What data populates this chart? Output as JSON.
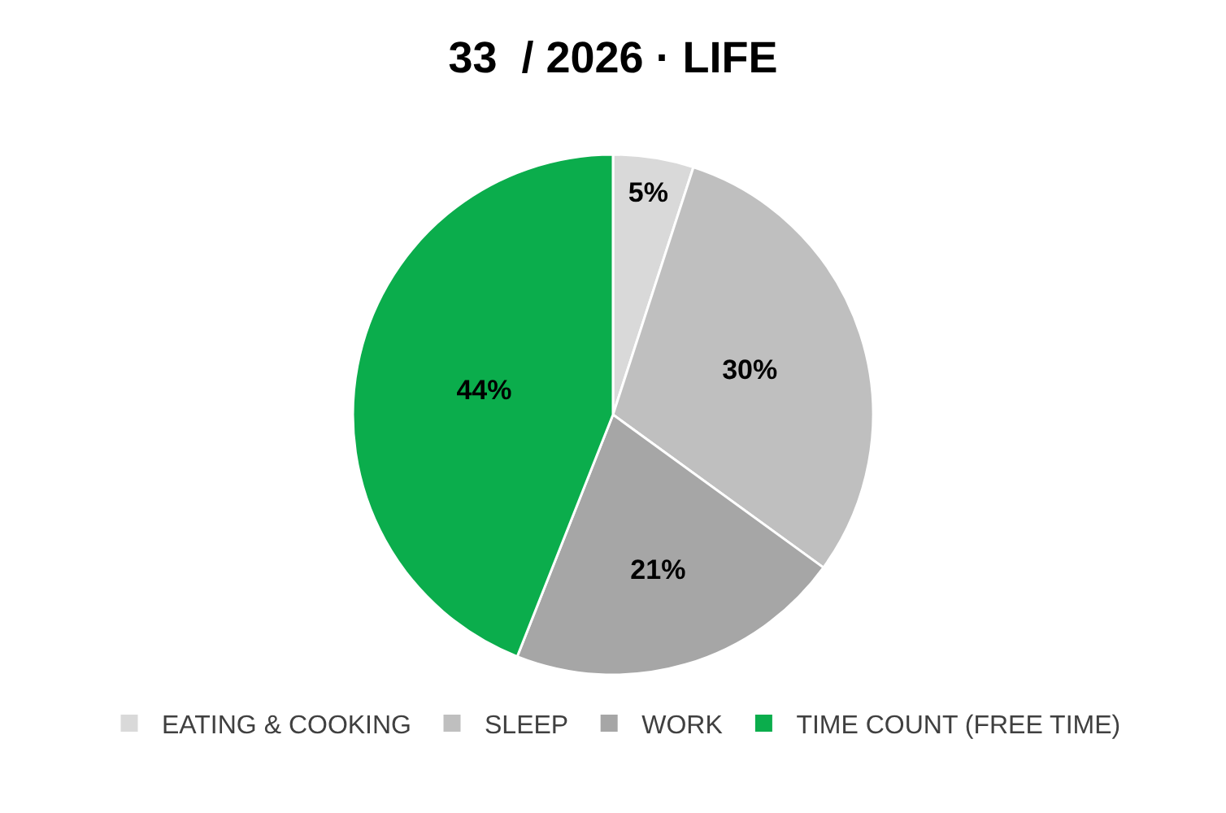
{
  "chart_data": {
    "type": "pie",
    "title": "33  / 2026 · LIFE",
    "categories": [
      "EATING & COOKING",
      "SLEEP",
      "WORK",
      "TIME COUNT (FREE TIME)"
    ],
    "values": [
      5,
      30,
      21,
      44
    ],
    "colors": [
      "#d9d9d9",
      "#bfbfbf",
      "#a6a6a6",
      "#0bad4c"
    ],
    "value_labels": [
      "5%",
      "30%",
      "21%",
      "44%"
    ],
    "legend": "bottom"
  }
}
